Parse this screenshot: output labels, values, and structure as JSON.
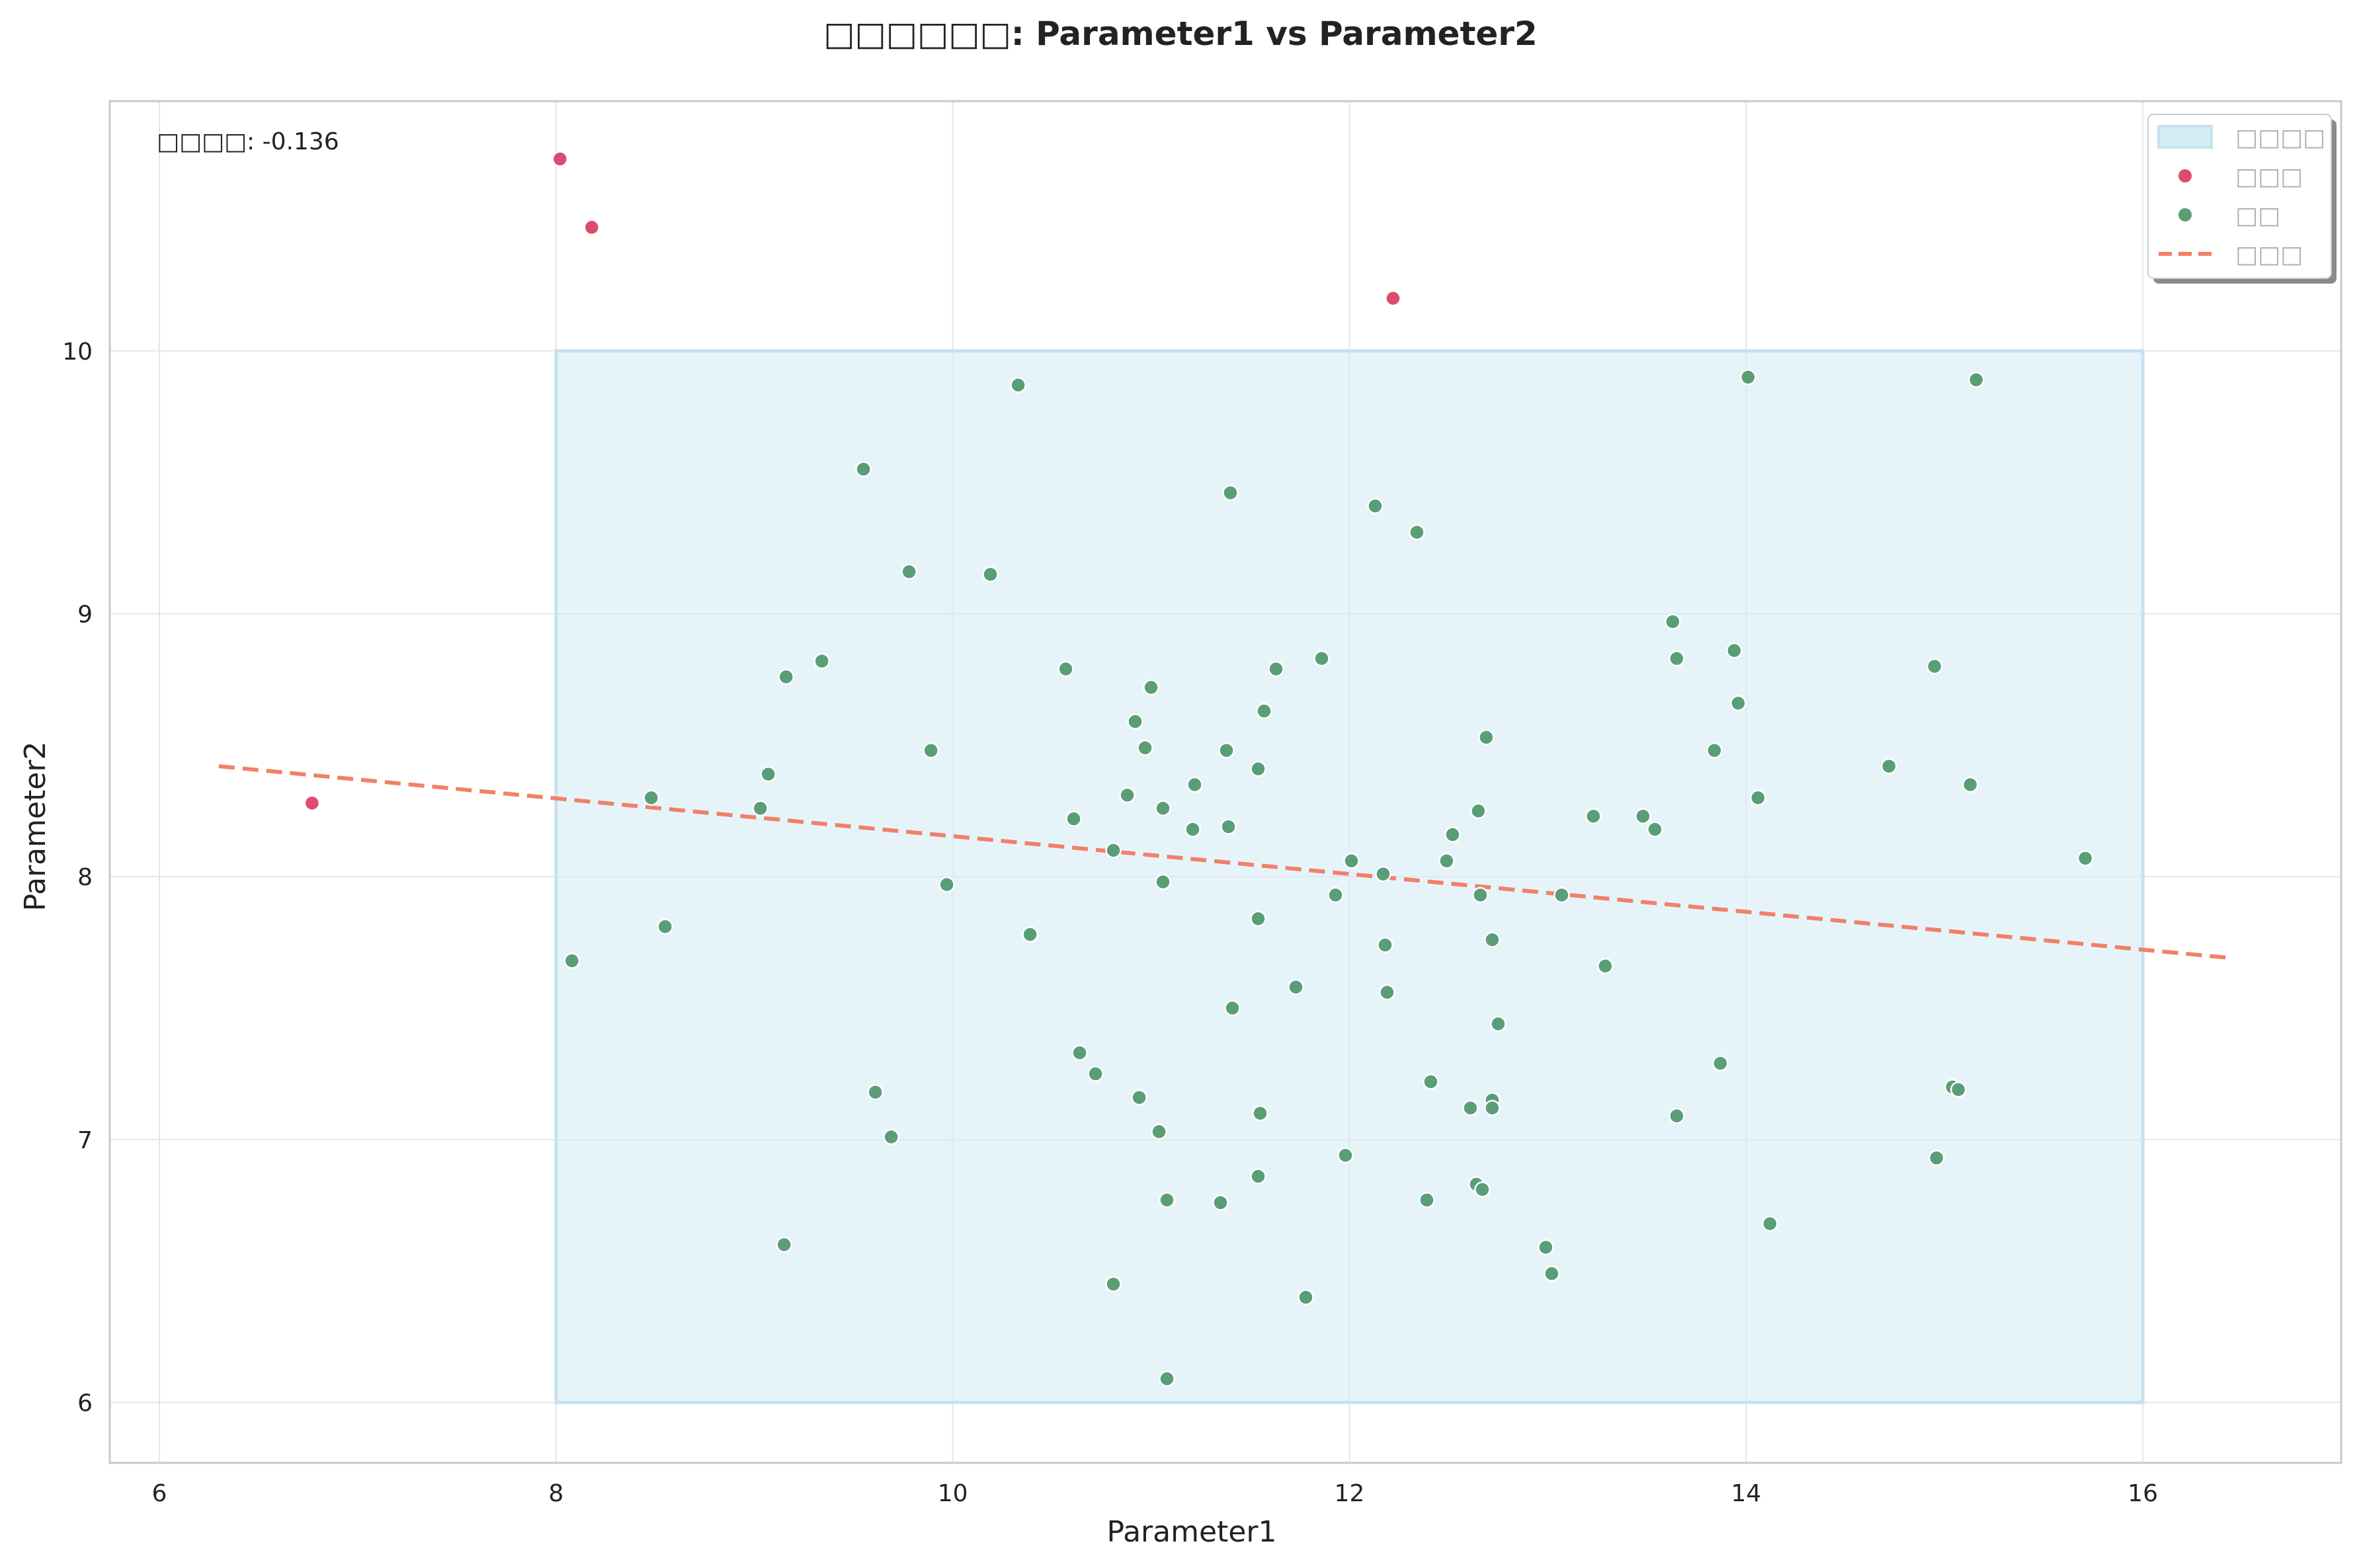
{
  "chart_data": {
    "type": "scatter",
    "title": "□□□□□□: Parameter1 vs Parameter2",
    "xlabel": "Parameter1",
    "ylabel": "Parameter2",
    "xlim": [
      5.75,
      17.0
    ],
    "ylim": [
      5.77,
      10.95
    ],
    "xticks": [
      6,
      8,
      10,
      12,
      14,
      16
    ],
    "yticks": [
      6,
      7,
      8,
      9,
      10
    ],
    "grid": true,
    "legend_position": "top-right",
    "annotation": "□□□□: -0.136",
    "legend": [
      {
        "label": "□□□□",
        "kind": "region"
      },
      {
        "label": "□□□",
        "kind": "outlier"
      },
      {
        "label": "□□",
        "kind": "normal"
      },
      {
        "label": "□□□",
        "kind": "trend"
      }
    ],
    "colors": {
      "normal": "#5a9e78",
      "outlier": "#dc4c6e",
      "trend": "#f28068",
      "region_fill": "#d5ecf6",
      "region_edge": "#c5e2f1",
      "grid": "#e6e6e6",
      "axes_edge": "#c8c8c8"
    },
    "region": {
      "x": [
        8,
        16
      ],
      "y": [
        6,
        10
      ]
    },
    "trend_line": {
      "x": [
        6.3,
        16.45
      ],
      "y": [
        8.42,
        7.69
      ]
    },
    "series": [
      {
        "kind": "outlier",
        "points": [
          [
            8.02,
            10.73
          ],
          [
            8.18,
            10.47
          ],
          [
            12.22,
            10.2
          ],
          [
            6.77,
            8.28
          ]
        ]
      },
      {
        "kind": "normal",
        "points": [
          [
            10.33,
            9.87
          ],
          [
            9.55,
            9.55
          ],
          [
            14.01,
            9.9
          ],
          [
            15.16,
            9.89
          ],
          [
            11.4,
            9.46
          ],
          [
            12.13,
            9.41
          ],
          [
            12.34,
            9.31
          ],
          [
            9.78,
            9.16
          ],
          [
            10.19,
            9.15
          ],
          [
            13.63,
            8.97
          ],
          [
            13.94,
            8.86
          ],
          [
            13.65,
            8.83
          ],
          [
            11.86,
            8.83
          ],
          [
            9.34,
            8.82
          ],
          [
            11.63,
            8.79
          ],
          [
            10.57,
            8.79
          ],
          [
            14.95,
            8.8
          ],
          [
            9.16,
            8.76
          ],
          [
            11.0,
            8.72
          ],
          [
            13.96,
            8.66
          ],
          [
            11.57,
            8.63
          ],
          [
            10.92,
            8.59
          ],
          [
            12.69,
            8.53
          ],
          [
            9.89,
            8.48
          ],
          [
            10.97,
            8.49
          ],
          [
            11.38,
            8.48
          ],
          [
            13.84,
            8.48
          ],
          [
            11.54,
            8.41
          ],
          [
            14.72,
            8.42
          ],
          [
            9.07,
            8.39
          ],
          [
            11.22,
            8.35
          ],
          [
            15.13,
            8.35
          ],
          [
            10.88,
            8.31
          ],
          [
            8.48,
            8.3
          ],
          [
            14.06,
            8.3
          ],
          [
            11.06,
            8.26
          ],
          [
            9.03,
            8.26
          ],
          [
            12.65,
            8.25
          ],
          [
            13.48,
            8.23
          ],
          [
            13.23,
            8.23
          ],
          [
            10.61,
            8.22
          ],
          [
            11.21,
            8.18
          ],
          [
            11.39,
            8.19
          ],
          [
            13.54,
            8.18
          ],
          [
            12.52,
            8.16
          ],
          [
            10.81,
            8.1
          ],
          [
            12.49,
            8.06
          ],
          [
            12.01,
            8.06
          ],
          [
            15.71,
            8.07
          ],
          [
            12.17,
            8.01
          ],
          [
            9.97,
            7.97
          ],
          [
            11.06,
            7.98
          ],
          [
            11.93,
            7.93
          ],
          [
            12.66,
            7.93
          ],
          [
            13.07,
            7.93
          ],
          [
            11.54,
            7.84
          ],
          [
            8.55,
            7.81
          ],
          [
            10.39,
            7.78
          ],
          [
            12.72,
            7.76
          ],
          [
            12.18,
            7.74
          ],
          [
            8.08,
            7.68
          ],
          [
            13.29,
            7.66
          ],
          [
            11.73,
            7.58
          ],
          [
            12.19,
            7.56
          ],
          [
            11.41,
            7.5
          ],
          [
            12.75,
            7.44
          ],
          [
            10.64,
            7.33
          ],
          [
            13.87,
            7.29
          ],
          [
            10.72,
            7.25
          ],
          [
            12.41,
            7.22
          ],
          [
            15.04,
            7.2
          ],
          [
            15.07,
            7.19
          ],
          [
            9.61,
            7.18
          ],
          [
            10.94,
            7.16
          ],
          [
            12.72,
            7.15
          ],
          [
            12.61,
            7.12
          ],
          [
            12.72,
            7.12
          ],
          [
            11.55,
            7.1
          ],
          [
            13.65,
            7.09
          ],
          [
            9.69,
            7.01
          ],
          [
            11.04,
            7.03
          ],
          [
            11.98,
            6.94
          ],
          [
            14.96,
            6.93
          ],
          [
            11.54,
            6.86
          ],
          [
            12.64,
            6.83
          ],
          [
            12.67,
            6.81
          ],
          [
            11.08,
            6.77
          ],
          [
            11.35,
            6.76
          ],
          [
            12.39,
            6.77
          ],
          [
            14.12,
            6.68
          ],
          [
            9.15,
            6.6
          ],
          [
            12.99,
            6.59
          ],
          [
            13.02,
            6.49
          ],
          [
            10.81,
            6.45
          ],
          [
            11.78,
            6.4
          ],
          [
            11.08,
            6.09
          ]
        ]
      }
    ]
  }
}
